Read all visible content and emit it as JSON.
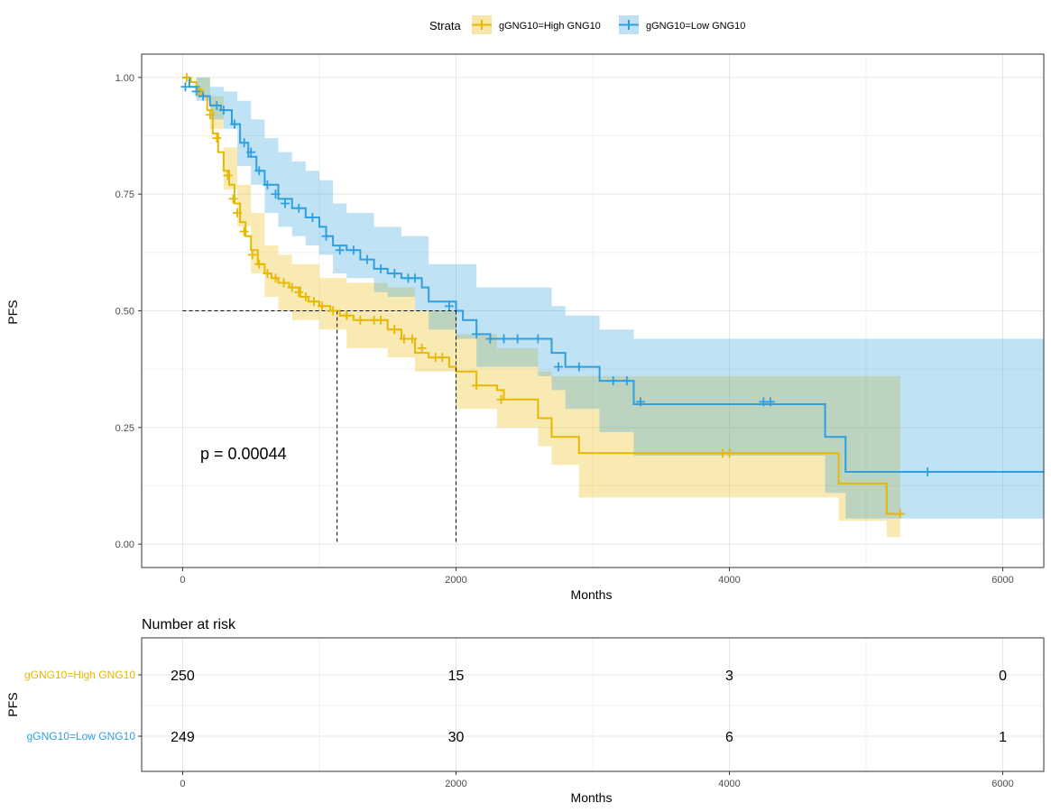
{
  "legend": {
    "title": "Strata",
    "items": [
      {
        "label": "gGNG10=High GNG10",
        "color": "#E7B800"
      },
      {
        "label": "gGNG10=Low GNG10",
        "color": "#2E9FDF"
      }
    ]
  },
  "annotation": {
    "pvalue": "p = 0.00044"
  },
  "risk_table": {
    "title": "Number at risk",
    "ylabel": "PFS",
    "xlabel": "Months",
    "times": [
      0,
      2000,
      4000,
      6000
    ],
    "time_labels": [
      "0",
      "2000",
      "4000",
      "6000"
    ],
    "rows": [
      {
        "label": "gGNG10=High GNG10",
        "color": "#E7B800",
        "counts": [
          "250",
          "15",
          "3",
          "0"
        ]
      },
      {
        "label": "gGNG10=Low GNG10",
        "color": "#2E9FDF",
        "counts": [
          "249",
          "30",
          "6",
          "1"
        ]
      }
    ]
  },
  "chart_data": {
    "type": "line",
    "title": "",
    "xlabel": "Months",
    "ylabel": "PFS",
    "xlim": [
      -300,
      6300
    ],
    "ylim": [
      -0.05,
      1.05
    ],
    "x_ticks": [
      0,
      2000,
      4000,
      6000
    ],
    "x_tick_labels": [
      "0",
      "2000",
      "4000",
      "6000"
    ],
    "y_ticks": [
      0,
      0.25,
      0.5,
      0.75,
      1.0
    ],
    "y_tick_labels": [
      "0.00",
      "0.25",
      "0.50",
      "0.75",
      "1.00"
    ],
    "median_line": {
      "y": 0.5,
      "medians": [
        1130,
        2000
      ]
    },
    "series": [
      {
        "name": "gGNG10=High GNG10",
        "color": "#E7B800",
        "fill": "#F7E6A8",
        "steps": [
          [
            0,
            1.0
          ],
          [
            60,
            0.99
          ],
          [
            100,
            0.975
          ],
          [
            140,
            0.96
          ],
          [
            180,
            0.93
          ],
          [
            220,
            0.88
          ],
          [
            260,
            0.84
          ],
          [
            300,
            0.8
          ],
          [
            340,
            0.77
          ],
          [
            380,
            0.73
          ],
          [
            420,
            0.69
          ],
          [
            460,
            0.66
          ],
          [
            500,
            0.63
          ],
          [
            550,
            0.6
          ],
          [
            600,
            0.58
          ],
          [
            650,
            0.57
          ],
          [
            700,
            0.56
          ],
          [
            780,
            0.55
          ],
          [
            860,
            0.53
          ],
          [
            920,
            0.52
          ],
          [
            1000,
            0.51
          ],
          [
            1080,
            0.5
          ],
          [
            1150,
            0.49
          ],
          [
            1250,
            0.48
          ],
          [
            1500,
            0.46
          ],
          [
            1600,
            0.44
          ],
          [
            1700,
            0.41
          ],
          [
            1800,
            0.4
          ],
          [
            1950,
            0.38
          ],
          [
            2000,
            0.37
          ],
          [
            2150,
            0.34
          ],
          [
            2300,
            0.33
          ],
          [
            2350,
            0.31
          ],
          [
            2600,
            0.27
          ],
          [
            2700,
            0.23
          ],
          [
            2900,
            0.195
          ],
          [
            4700,
            0.195
          ],
          [
            4800,
            0.13
          ],
          [
            5150,
            0.065
          ],
          [
            5250,
            0.065
          ]
        ],
        "lower": [
          [
            0,
            1.0
          ],
          [
            100,
            0.96
          ],
          [
            200,
            0.89
          ],
          [
            300,
            0.76
          ],
          [
            400,
            0.68
          ],
          [
            500,
            0.58
          ],
          [
            600,
            0.53
          ],
          [
            700,
            0.5
          ],
          [
            800,
            0.48
          ],
          [
            1000,
            0.46
          ],
          [
            1200,
            0.42
          ],
          [
            1500,
            0.4
          ],
          [
            1700,
            0.37
          ],
          [
            2000,
            0.29
          ],
          [
            2300,
            0.25
          ],
          [
            2600,
            0.21
          ],
          [
            2700,
            0.17
          ],
          [
            2900,
            0.1
          ],
          [
            4700,
            0.1
          ],
          [
            4800,
            0.05
          ],
          [
            5150,
            0.015
          ],
          [
            5250,
            0.015
          ]
        ],
        "upper": [
          [
            0,
            1.0
          ],
          [
            100,
            1.0
          ],
          [
            200,
            0.96
          ],
          [
            300,
            0.85
          ],
          [
            400,
            0.77
          ],
          [
            500,
            0.71
          ],
          [
            600,
            0.64
          ],
          [
            700,
            0.62
          ],
          [
            800,
            0.6
          ],
          [
            1000,
            0.57
          ],
          [
            1200,
            0.56
          ],
          [
            1500,
            0.55
          ],
          [
            1700,
            0.5
          ],
          [
            2000,
            0.45
          ],
          [
            2300,
            0.42
          ],
          [
            2600,
            0.37
          ],
          [
            2700,
            0.36
          ],
          [
            2900,
            0.36
          ],
          [
            4700,
            0.36
          ],
          [
            4800,
            0.36
          ],
          [
            5250,
            0.36
          ]
        ],
        "censors": [
          [
            30,
            1.0
          ],
          [
            120,
            0.97
          ],
          [
            200,
            0.92
          ],
          [
            250,
            0.87
          ],
          [
            330,
            0.79
          ],
          [
            370,
            0.74
          ],
          [
            400,
            0.71
          ],
          [
            450,
            0.67
          ],
          [
            510,
            0.62
          ],
          [
            560,
            0.6
          ],
          [
            620,
            0.58
          ],
          [
            680,
            0.57
          ],
          [
            740,
            0.56
          ],
          [
            800,
            0.55
          ],
          [
            850,
            0.54
          ],
          [
            900,
            0.53
          ],
          [
            960,
            0.52
          ],
          [
            1020,
            0.51
          ],
          [
            1100,
            0.5
          ],
          [
            1200,
            0.49
          ],
          [
            1300,
            0.48
          ],
          [
            1400,
            0.48
          ],
          [
            1450,
            0.48
          ],
          [
            1550,
            0.46
          ],
          [
            1620,
            0.44
          ],
          [
            1680,
            0.44
          ],
          [
            1750,
            0.42
          ],
          [
            1850,
            0.4
          ],
          [
            1900,
            0.4
          ],
          [
            2150,
            0.34
          ],
          [
            2330,
            0.31
          ],
          [
            3950,
            0.195
          ],
          [
            4000,
            0.195
          ],
          [
            5250,
            0.065
          ]
        ]
      },
      {
        "name": "gGNG10=Low GNG10",
        "color": "#2E9FDF",
        "fill": "#BFE0F3",
        "steps": [
          [
            0,
            1.0
          ],
          [
            50,
            0.98
          ],
          [
            120,
            0.96
          ],
          [
            200,
            0.94
          ],
          [
            280,
            0.93
          ],
          [
            360,
            0.9
          ],
          [
            420,
            0.86
          ],
          [
            480,
            0.83
          ],
          [
            540,
            0.8
          ],
          [
            600,
            0.77
          ],
          [
            700,
            0.74
          ],
          [
            800,
            0.72
          ],
          [
            900,
            0.7
          ],
          [
            1000,
            0.68
          ],
          [
            1050,
            0.66
          ],
          [
            1100,
            0.64
          ],
          [
            1200,
            0.63
          ],
          [
            1300,
            0.61
          ],
          [
            1400,
            0.59
          ],
          [
            1500,
            0.58
          ],
          [
            1600,
            0.57
          ],
          [
            1750,
            0.55
          ],
          [
            1800,
            0.52
          ],
          [
            2000,
            0.5
          ],
          [
            2050,
            0.48
          ],
          [
            2150,
            0.45
          ],
          [
            2250,
            0.44
          ],
          [
            2600,
            0.44
          ],
          [
            2700,
            0.41
          ],
          [
            2800,
            0.38
          ],
          [
            3050,
            0.35
          ],
          [
            3300,
            0.3
          ],
          [
            4700,
            0.23
          ],
          [
            4850,
            0.155
          ],
          [
            6300,
            0.155
          ]
        ],
        "lower": [
          [
            0,
            1.0
          ],
          [
            100,
            0.95
          ],
          [
            200,
            0.91
          ],
          [
            300,
            0.89
          ],
          [
            400,
            0.81
          ],
          [
            500,
            0.77
          ],
          [
            600,
            0.71
          ],
          [
            700,
            0.68
          ],
          [
            800,
            0.66
          ],
          [
            900,
            0.64
          ],
          [
            1000,
            0.62
          ],
          [
            1100,
            0.58
          ],
          [
            1200,
            0.57
          ],
          [
            1400,
            0.54
          ],
          [
            1500,
            0.53
          ],
          [
            1700,
            0.5
          ],
          [
            1800,
            0.46
          ],
          [
            2000,
            0.44
          ],
          [
            2150,
            0.38
          ],
          [
            2600,
            0.36
          ],
          [
            2700,
            0.33
          ],
          [
            2800,
            0.29
          ],
          [
            3050,
            0.24
          ],
          [
            3300,
            0.19
          ],
          [
            4700,
            0.11
          ],
          [
            4850,
            0.055
          ],
          [
            6300,
            0.055
          ]
        ],
        "upper": [
          [
            0,
            1.0
          ],
          [
            100,
            1.0
          ],
          [
            200,
            0.98
          ],
          [
            300,
            0.97
          ],
          [
            400,
            0.95
          ],
          [
            500,
            0.91
          ],
          [
            600,
            0.87
          ],
          [
            700,
            0.84
          ],
          [
            800,
            0.82
          ],
          [
            900,
            0.8
          ],
          [
            1000,
            0.78
          ],
          [
            1100,
            0.73
          ],
          [
            1200,
            0.71
          ],
          [
            1400,
            0.68
          ],
          [
            1600,
            0.66
          ],
          [
            1800,
            0.6
          ],
          [
            2000,
            0.6
          ],
          [
            2150,
            0.55
          ],
          [
            2700,
            0.51
          ],
          [
            2800,
            0.49
          ],
          [
            3050,
            0.46
          ],
          [
            3300,
            0.44
          ],
          [
            4700,
            0.44
          ],
          [
            4850,
            0.44
          ],
          [
            6300,
            0.44
          ]
        ],
        "censors": [
          [
            20,
            0.98
          ],
          [
            100,
            0.97
          ],
          [
            150,
            0.96
          ],
          [
            250,
            0.94
          ],
          [
            300,
            0.93
          ],
          [
            380,
            0.9
          ],
          [
            450,
            0.86
          ],
          [
            500,
            0.84
          ],
          [
            560,
            0.8
          ],
          [
            620,
            0.77
          ],
          [
            680,
            0.75
          ],
          [
            750,
            0.73
          ],
          [
            850,
            0.72
          ],
          [
            950,
            0.7
          ],
          [
            1050,
            0.66
          ],
          [
            1150,
            0.63
          ],
          [
            1250,
            0.63
          ],
          [
            1350,
            0.61
          ],
          [
            1450,
            0.59
          ],
          [
            1550,
            0.58
          ],
          [
            1650,
            0.57
          ],
          [
            1700,
            0.57
          ],
          [
            1950,
            0.51
          ],
          [
            2150,
            0.45
          ],
          [
            2250,
            0.44
          ],
          [
            2350,
            0.44
          ],
          [
            2450,
            0.44
          ],
          [
            2600,
            0.44
          ],
          [
            2750,
            0.38
          ],
          [
            2900,
            0.38
          ],
          [
            3150,
            0.35
          ],
          [
            3250,
            0.35
          ],
          [
            3350,
            0.305
          ],
          [
            4250,
            0.305
          ],
          [
            4300,
            0.305
          ],
          [
            5450,
            0.155
          ]
        ]
      }
    ]
  }
}
